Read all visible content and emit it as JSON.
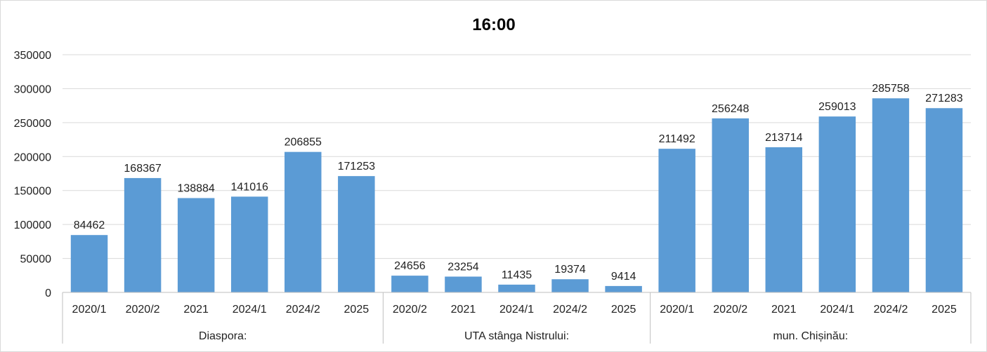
{
  "chart_data": {
    "type": "bar",
    "title": "16:00",
    "xlabel": "",
    "ylabel": "",
    "ylim": [
      0,
      350000
    ],
    "yticks": [
      0,
      50000,
      100000,
      150000,
      200000,
      250000,
      300000,
      350000
    ],
    "grid": true,
    "legend": "none",
    "bar_color": "#5b9bd5",
    "groups": [
      {
        "name": "Diaspora:",
        "categories": [
          "2020/1",
          "2020/2",
          "2021",
          "2024/1",
          "2024/2",
          "2025"
        ],
        "values": [
          84462,
          168367,
          138884,
          141016,
          206855,
          171253
        ]
      },
      {
        "name": "UTA stânga Nistrului:",
        "categories": [
          "2020/2",
          "2021",
          "2024/1",
          "2024/2",
          "2025"
        ],
        "values": [
          24656,
          23254,
          11435,
          19374,
          9414
        ]
      },
      {
        "name": "mun. Chișinău:",
        "categories": [
          "2020/1",
          "2020/2",
          "2021",
          "2024/1",
          "2024/2",
          "2025"
        ],
        "values": [
          211492,
          256248,
          213714,
          259013,
          285758,
          271283
        ]
      }
    ]
  }
}
